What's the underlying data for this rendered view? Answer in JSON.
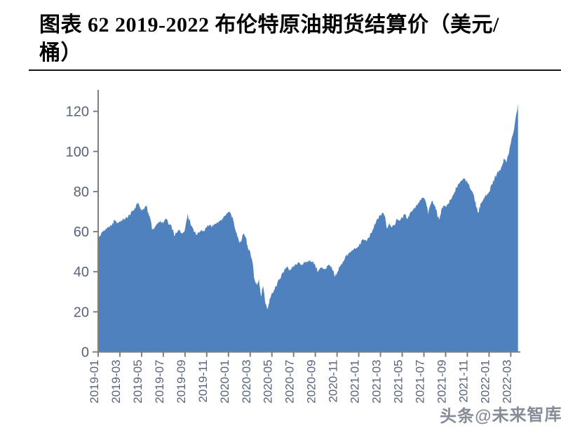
{
  "header": {
    "line1": "图表 62 2019-2022 布伦特原油期货结算价（美元/",
    "line2": "桶）"
  },
  "watermark": {
    "text": "头条@未来智库"
  },
  "chart_data": {
    "type": "area",
    "title": "图表 62 2019-2022 布伦特原油期货结算价（美元/桶）",
    "series_name": "布伦特原油期货结算价",
    "unit": "美元/桶",
    "xlabel": "",
    "ylabel": "",
    "ylim": [
      0,
      130
    ],
    "y_ticks": [
      0,
      20,
      40,
      60,
      80,
      100,
      120
    ],
    "x_tick_labels": [
      "2019-01",
      "2019-03",
      "2019-05",
      "2019-07",
      "2019-09",
      "2019-11",
      "2020-01",
      "2020-03",
      "2020-05",
      "2020-07",
      "2020-09",
      "2020-11",
      "2021-01",
      "2021-03",
      "2021-05",
      "2021-07",
      "2021-09",
      "2021-11",
      "2022-01",
      "2022-03"
    ],
    "grid": "off",
    "legend": "none",
    "colors": {
      "fill": "#4e81bd",
      "axis": "#7f7f7f",
      "tick_label": "#57637a"
    },
    "points_by_month": [
      {
        "month": "2019-01",
        "values": [
          56.5,
          58.5,
          60.5,
          61.5
        ]
      },
      {
        "month": "2019-02",
        "values": [
          62.5,
          63.0,
          66.0,
          64.5
        ]
      },
      {
        "month": "2019-03",
        "values": [
          65.0,
          66.0,
          66.5,
          67.5
        ]
      },
      {
        "month": "2019-04",
        "values": [
          69.0,
          70.5,
          71.5,
          74.5,
          72.5
        ]
      },
      {
        "month": "2019-05",
        "values": [
          70.5,
          71.5,
          73.0,
          69.5,
          66.5
        ]
      },
      {
        "month": "2019-06",
        "values": [
          61.0,
          62.5,
          64.0,
          65.5
        ]
      },
      {
        "month": "2019-07",
        "values": [
          64.0,
          66.5,
          63.5,
          63.0
        ]
      },
      {
        "month": "2019-08",
        "values": [
          58.0,
          59.5,
          61.0,
          59.0
        ]
      },
      {
        "month": "2019-09",
        "values": [
          61.5,
          69.0,
          64.0,
          61.5
        ]
      },
      {
        "month": "2019-10",
        "values": [
          58.5,
          59.5,
          61.0,
          60.0
        ]
      },
      {
        "month": "2019-11",
        "values": [
          62.0,
          63.5,
          62.5,
          64.0
        ]
      },
      {
        "month": "2019-12",
        "values": [
          64.5,
          65.5,
          66.5,
          68.0
        ]
      },
      {
        "month": "2020-01",
        "values": [
          70.0,
          68.5,
          64.5,
          59.5
        ]
      },
      {
        "month": "2020-02",
        "values": [
          54.5,
          55.5,
          59.0,
          57.0,
          51.5
        ]
      },
      {
        "month": "2020-03",
        "values": [
          50.0,
          45.0,
          36.0,
          33.5,
          36.5
        ]
      },
      {
        "month": "2020-04",
        "values": [
          27.5,
          33.0,
          24.0,
          21.5,
          26.5
        ]
      },
      {
        "month": "2020-05",
        "values": [
          29.5,
          31.0,
          34.5,
          36.5
        ]
      },
      {
        "month": "2020-06",
        "values": [
          39.5,
          41.5,
          42.5,
          40.5,
          41.5
        ]
      },
      {
        "month": "2020-07",
        "values": [
          43.0,
          43.5,
          44.5,
          43.5
        ]
      },
      {
        "month": "2020-08",
        "values": [
          44.5,
          45.0,
          45.5,
          45.0
        ]
      },
      {
        "month": "2020-09",
        "values": [
          43.0,
          40.0,
          42.0,
          41.5
        ]
      },
      {
        "month": "2020-10",
        "values": [
          41.5,
          43.5,
          42.5,
          40.5,
          37.5
        ]
      },
      {
        "month": "2020-11",
        "values": [
          39.5,
          42.5,
          44.5,
          47.5
        ]
      },
      {
        "month": "2020-12",
        "values": [
          48.5,
          50.0,
          51.0,
          51.5
        ]
      },
      {
        "month": "2021-01",
        "values": [
          52.5,
          55.5,
          56.0,
          55.5
        ]
      },
      {
        "month": "2021-02",
        "values": [
          57.5,
          60.5,
          63.5,
          66.5
        ]
      },
      {
        "month": "2021-03",
        "values": [
          68.0,
          69.5,
          68.0,
          61.5,
          64.5
        ]
      },
      {
        "month": "2021-04",
        "values": [
          62.5,
          63.0,
          66.5,
          65.5
        ]
      },
      {
        "month": "2021-05",
        "values": [
          67.0,
          68.5,
          66.5,
          69.5
        ]
      },
      {
        "month": "2021-06",
        "values": [
          71.0,
          72.5,
          74.5,
          76.0
        ]
      },
      {
        "month": "2021-07",
        "values": [
          77.0,
          74.5,
          68.5,
          73.5,
          75.5
        ]
      },
      {
        "month": "2021-08",
        "values": [
          72.5,
          69.5,
          66.0,
          71.0,
          73.0
        ]
      },
      {
        "month": "2021-09",
        "values": [
          72.5,
          74.0,
          76.0,
          78.5
        ]
      },
      {
        "month": "2021-10",
        "values": [
          82.0,
          84.0,
          85.5,
          86.5
        ]
      },
      {
        "month": "2021-11",
        "values": [
          84.5,
          82.5,
          80.5,
          78.5,
          72.5
        ]
      },
      {
        "month": "2021-12",
        "values": [
          69.5,
          73.5,
          75.5,
          77.5,
          78.5
        ]
      },
      {
        "month": "2022-01",
        "values": [
          80.0,
          83.5,
          86.5,
          89.5
        ]
      },
      {
        "month": "2022-02",
        "values": [
          90.5,
          93.0,
          96.5,
          94.5,
          98.5
        ]
      },
      {
        "month": "2022-03",
        "values": [
          104.0,
          112.0,
          123.7
        ]
      }
    ]
  }
}
